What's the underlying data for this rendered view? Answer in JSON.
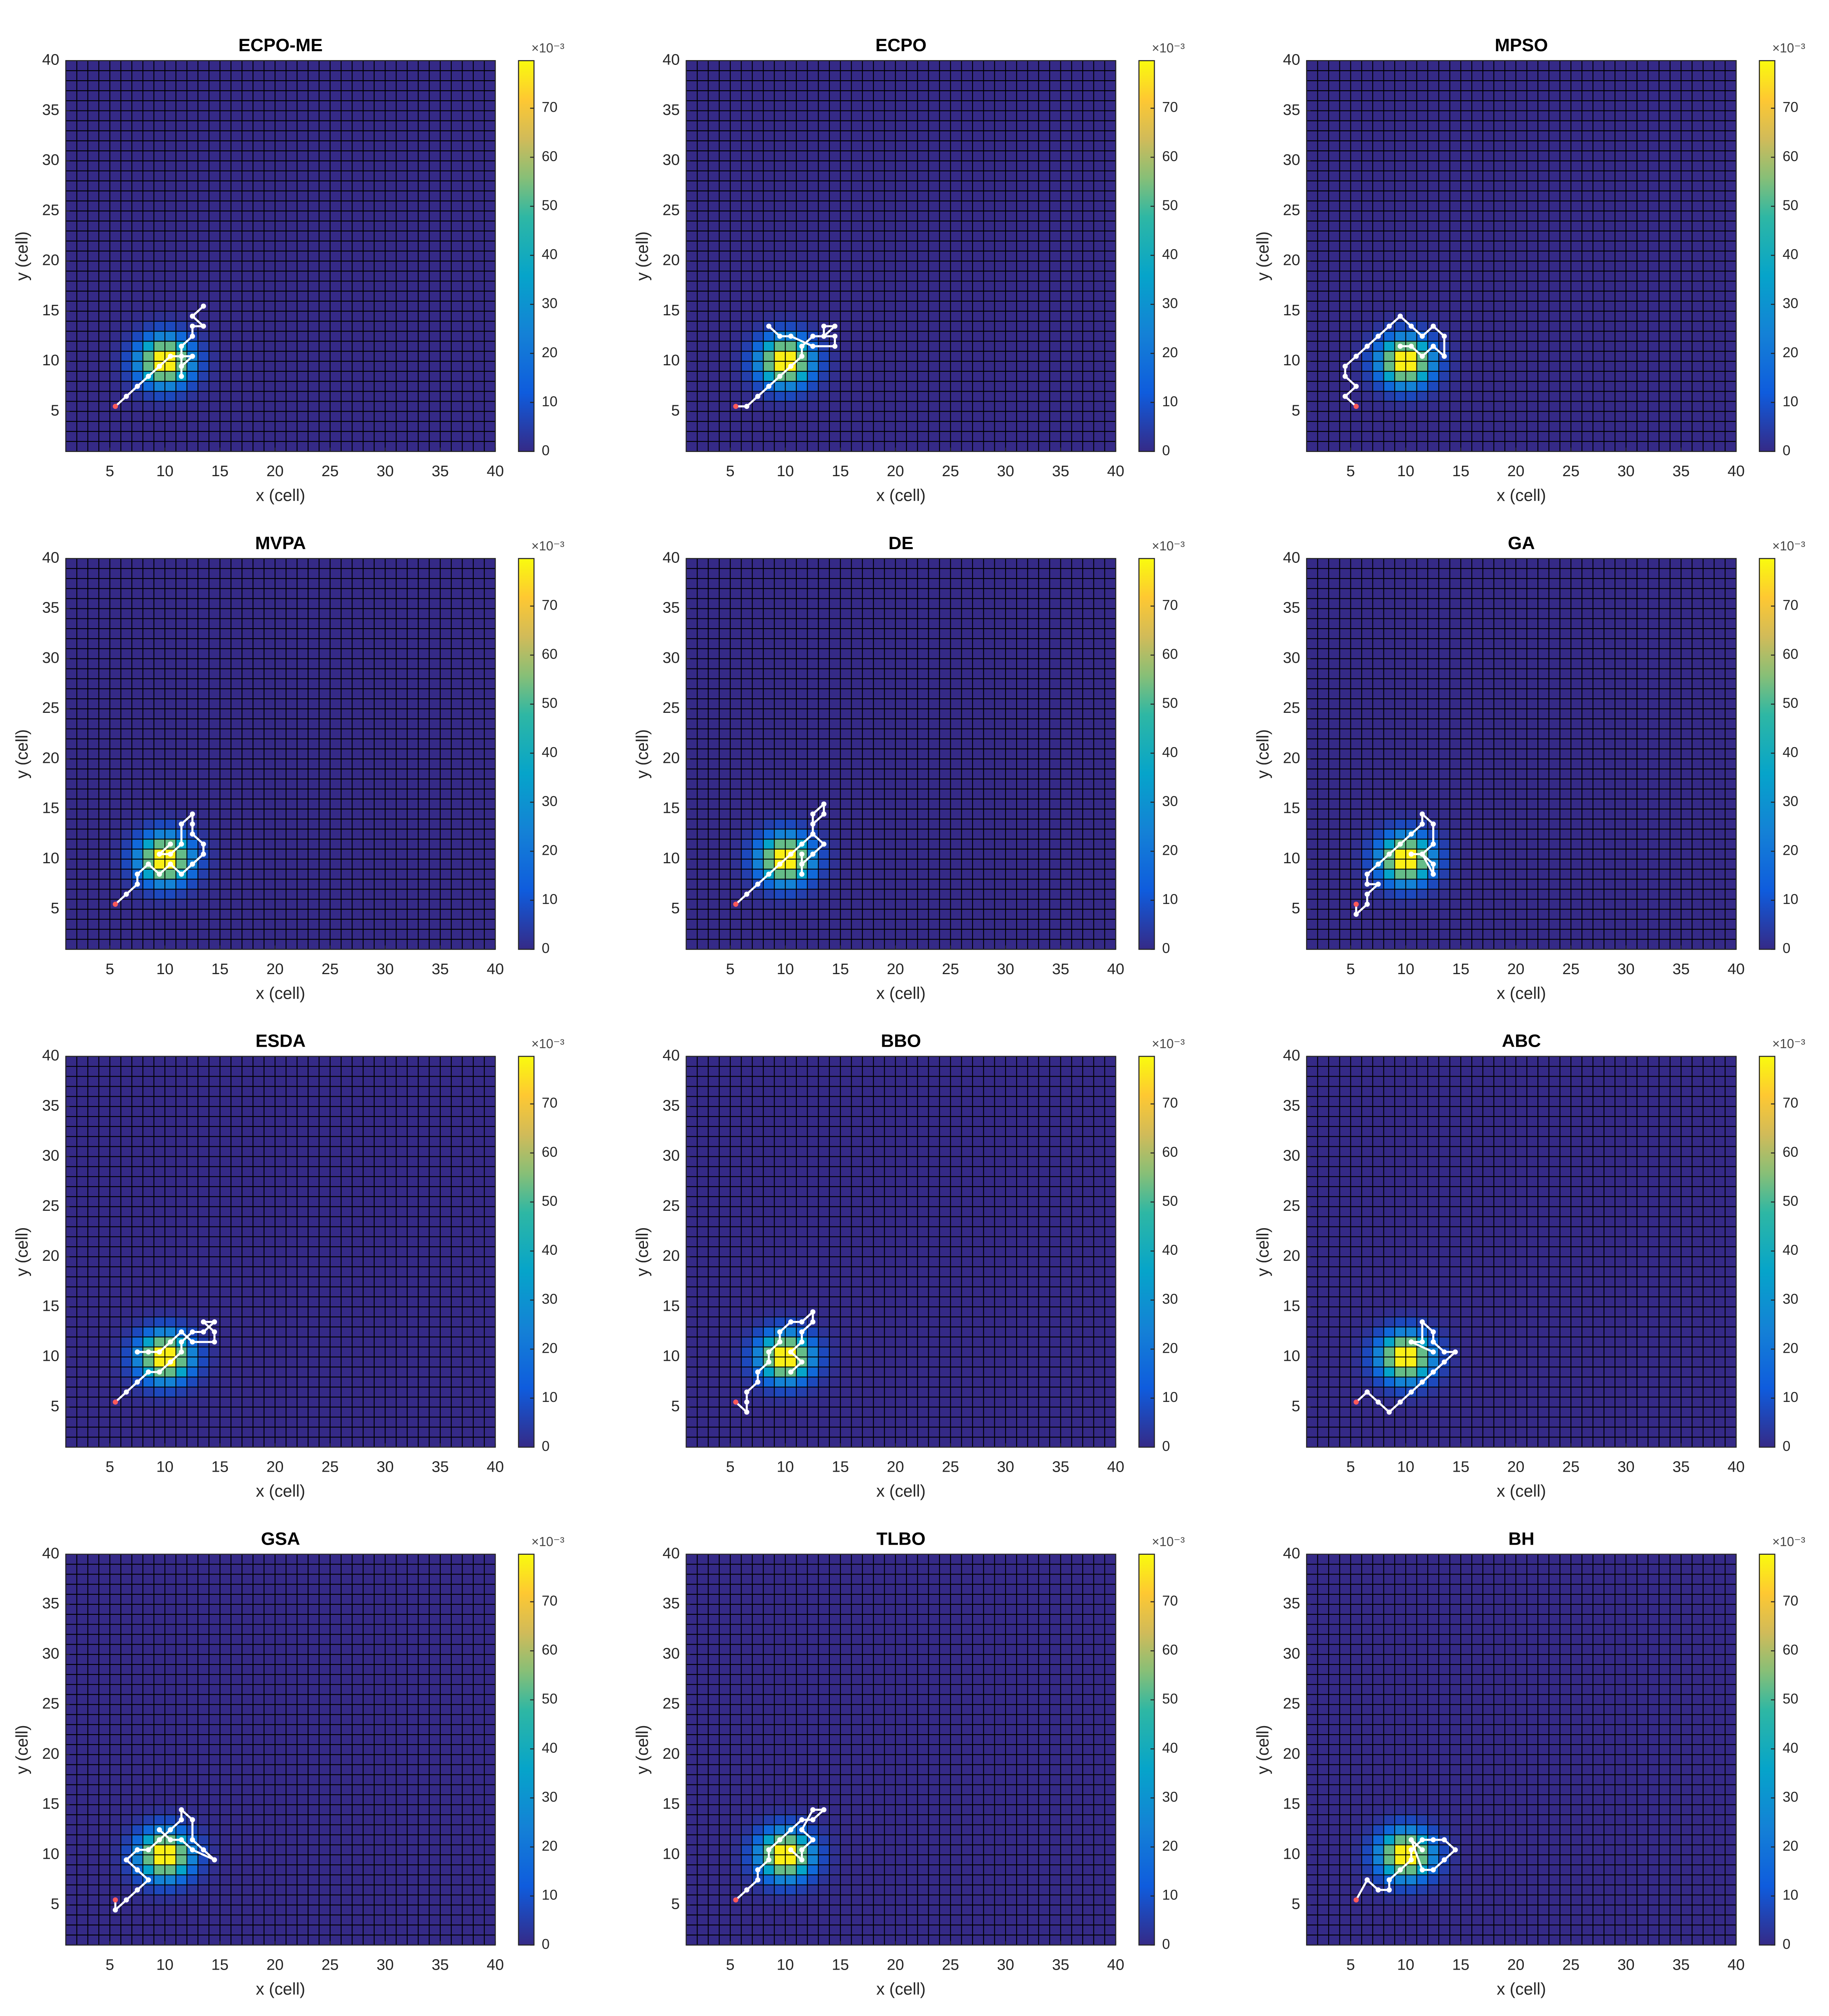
{
  "probability_map": {
    "x_edges": [
      5,
      6,
      7,
      8,
      9,
      10,
      11,
      12,
      13,
      14,
      15
    ],
    "y_edges": [
      5,
      6,
      7,
      8,
      9,
      10,
      11,
      12,
      13,
      14,
      15
    ],
    "z": [
      [
        0,
        0.2,
        0.5,
        1.1,
        1.6,
        1.6,
        1.1,
        0.5,
        0.2,
        0
      ],
      [
        0.2,
        0.7,
        2.3,
        5.1,
        7.5,
        7.5,
        5.1,
        2.3,
        0.7,
        0.2
      ],
      [
        0.5,
        2.3,
        7.5,
        16.3,
        24.2,
        24.2,
        16.3,
        7.5,
        2.3,
        0.5
      ],
      [
        1.1,
        5.1,
        16.3,
        35.7,
        52.7,
        52.7,
        35.7,
        16.3,
        5.1,
        1.1
      ],
      [
        1.6,
        7.5,
        24.2,
        52.7,
        77.9,
        77.9,
        52.7,
        24.2,
        7.5,
        1.6
      ],
      [
        1.6,
        7.5,
        24.2,
        52.7,
        77.9,
        77.9,
        52.7,
        24.2,
        7.5,
        1.6
      ],
      [
        1.1,
        5.1,
        16.3,
        35.7,
        52.7,
        52.7,
        35.7,
        16.3,
        5.1,
        1.1
      ],
      [
        0.5,
        2.3,
        7.5,
        16.3,
        24.2,
        24.2,
        16.3,
        7.5,
        2.3,
        0.5
      ],
      [
        0.2,
        0.7,
        2.3,
        5.1,
        7.5,
        7.5,
        5.1,
        2.3,
        0.7,
        0.2
      ],
      [
        0,
        0.2,
        0.5,
        1.1,
        1.6,
        1.6,
        1.1,
        0.5,
        0.2,
        0
      ]
    ],
    "colorbar": {
      "lim": [
        0,
        79.7
      ],
      "ticks": [
        0,
        10,
        20,
        30,
        40,
        50,
        60,
        70
      ],
      "exponent_label": "×10⁻³"
    }
  },
  "chart_data": [
    {
      "type": "heatmap",
      "title": "ECPO-ME",
      "xlabel": "x (cell)",
      "ylabel": "y (cell)",
      "xlim": [
        1,
        40
      ],
      "ylim": [
        1,
        40
      ],
      "xticks": [
        5,
        10,
        15,
        20,
        25,
        30,
        35,
        40
      ],
      "yticks": [
        5,
        10,
        15,
        20,
        25,
        30,
        35,
        40
      ],
      "path": {
        "color": "#ffffff",
        "start_color": "#ff5a5a",
        "x": [
          5.5,
          6.5,
          7.5,
          8.5,
          9.5,
          10.5,
          11.5,
          12.5,
          11.5,
          11.5,
          11.5,
          12.5,
          12.5,
          13.5,
          12.5,
          13.5
        ],
        "y": [
          5.5,
          6.5,
          7.5,
          8.5,
          9.5,
          10.5,
          10.5,
          10.5,
          9.5,
          8.5,
          11.5,
          12.5,
          13.5,
          13.5,
          14.5,
          15.5
        ]
      }
    },
    {
      "type": "heatmap",
      "title": "ECPO",
      "xlabel": "x (cell)",
      "ylabel": "y (cell)",
      "xlim": [
        1,
        40
      ],
      "ylim": [
        1,
        40
      ],
      "xticks": [
        5,
        10,
        15,
        20,
        25,
        30,
        35,
        40
      ],
      "yticks": [
        5,
        10,
        15,
        20,
        25,
        30,
        35,
        40
      ],
      "path": {
        "color": "#ffffff",
        "start_color": "#ff5a5a",
        "x": [
          5.5,
          6.5,
          7.5,
          8.5,
          9.5,
          10.5,
          11.5,
          11.5,
          12.5,
          13.5,
          14.5,
          13.5,
          13.5,
          14.5,
          14.5,
          12.5,
          10.5,
          9.5,
          8.5
        ],
        "y": [
          5.5,
          5.5,
          6.5,
          7.5,
          8.5,
          9.5,
          10.5,
          11.5,
          12.5,
          12.5,
          13.5,
          13.5,
          12.5,
          12.5,
          11.5,
          11.5,
          12.5,
          12.5,
          13.5
        ]
      }
    },
    {
      "type": "heatmap",
      "title": "MPSO",
      "xlabel": "x (cell)",
      "ylabel": "y (cell)",
      "xlim": [
        1,
        40
      ],
      "ylim": [
        1,
        40
      ],
      "xticks": [
        5,
        10,
        15,
        20,
        25,
        30,
        35,
        40
      ],
      "yticks": [
        5,
        10,
        15,
        20,
        25,
        30,
        35,
        40
      ],
      "path": {
        "color": "#ffffff",
        "start_color": "#ff5a5a",
        "x": [
          5.5,
          4.5,
          5.5,
          4.5,
          4.5,
          5.5,
          6.5,
          7.5,
          8.5,
          9.5,
          10.5,
          11.5,
          12.5,
          13.5,
          13.5,
          12.5,
          11.5,
          10.5,
          9.5
        ],
        "y": [
          5.5,
          6.5,
          7.5,
          8.5,
          9.5,
          10.5,
          11.5,
          12.5,
          13.5,
          14.5,
          13.5,
          12.5,
          13.5,
          12.5,
          10.5,
          11.5,
          10.5,
          11.5,
          11.5
        ]
      }
    },
    {
      "type": "heatmap",
      "title": "MVPA",
      "xlabel": "x (cell)",
      "ylabel": "y (cell)",
      "xlim": [
        1,
        40
      ],
      "ylim": [
        1,
        40
      ],
      "xticks": [
        5,
        10,
        15,
        20,
        25,
        30,
        35,
        40
      ],
      "yticks": [
        5,
        10,
        15,
        20,
        25,
        30,
        35,
        40
      ],
      "path": {
        "color": "#ffffff",
        "start_color": "#ff5a5a",
        "x": [
          5.5,
          6.5,
          7.5,
          7.5,
          8.5,
          9.5,
          10.5,
          11.5,
          12.5,
          13.5,
          13.5,
          12.5,
          12.5,
          12.5,
          11.5,
          11.5,
          10.5,
          9.5,
          10.5
        ],
        "y": [
          5.5,
          6.5,
          7.5,
          8.5,
          9.5,
          8.5,
          9.5,
          8.5,
          9.5,
          10.5,
          11.5,
          12.5,
          13.5,
          14.5,
          13.5,
          11.5,
          10.5,
          10.5,
          11.5
        ]
      }
    },
    {
      "type": "heatmap",
      "title": "DE",
      "xlabel": "x (cell)",
      "ylabel": "y (cell)",
      "xlim": [
        1,
        40
      ],
      "ylim": [
        1,
        40
      ],
      "xticks": [
        5,
        10,
        15,
        20,
        25,
        30,
        35,
        40
      ],
      "yticks": [
        5,
        10,
        15,
        20,
        25,
        30,
        35,
        40
      ],
      "path": {
        "color": "#ffffff",
        "start_color": "#ff5a5a",
        "x": [
          5.5,
          6.5,
          7.5,
          8.5,
          9.5,
          10.5,
          11.5,
          12.5,
          12.5,
          13.5,
          13.5,
          12.5,
          12.5,
          13.5,
          12.5,
          11.5,
          11.5,
          11.5
        ],
        "y": [
          5.5,
          6.5,
          7.5,
          8.5,
          9.5,
          10.5,
          11.5,
          12.5,
          13.5,
          14.5,
          15.5,
          14.5,
          12.5,
          11.5,
          10.5,
          9.5,
          8.5,
          10.5
        ]
      }
    },
    {
      "type": "heatmap",
      "title": "GA",
      "xlabel": "x (cell)",
      "ylabel": "y (cell)",
      "xlim": [
        1,
        40
      ],
      "ylim": [
        1,
        40
      ],
      "xticks": [
        5,
        10,
        15,
        20,
        25,
        30,
        35,
        40
      ],
      "yticks": [
        5,
        10,
        15,
        20,
        25,
        30,
        35,
        40
      ],
      "path": {
        "color": "#ffffff",
        "start_color": "#ff5a5a",
        "x": [
          5.5,
          5.5,
          6.5,
          6.5,
          7.5,
          6.5,
          6.5,
          7.5,
          8.5,
          9.5,
          10.5,
          11.5,
          11.5,
          12.5,
          12.5,
          11.5,
          12.5,
          12.5,
          11.5,
          10.5
        ],
        "y": [
          5.5,
          4.5,
          5.5,
          6.5,
          7.5,
          7.5,
          8.5,
          9.5,
          10.5,
          11.5,
          12.5,
          13.5,
          14.5,
          13.5,
          11.5,
          10.5,
          9.5,
          8.5,
          10.5,
          10.5
        ]
      }
    },
    {
      "type": "heatmap",
      "title": "ESDA",
      "xlabel": "x (cell)",
      "ylabel": "y (cell)",
      "xlim": [
        1,
        40
      ],
      "ylim": [
        1,
        40
      ],
      "xticks": [
        5,
        10,
        15,
        20,
        25,
        30,
        35,
        40
      ],
      "yticks": [
        5,
        10,
        15,
        20,
        25,
        30,
        35,
        40
      ],
      "path": {
        "color": "#ffffff",
        "start_color": "#ff5a5a",
        "x": [
          5.5,
          6.5,
          7.5,
          8.5,
          9.5,
          10.5,
          11.5,
          11.5,
          12.5,
          13.5,
          14.5,
          13.5,
          14.5,
          14.5,
          12.5,
          11.5,
          10.5,
          9.5,
          8.5,
          7.5
        ],
        "y": [
          5.5,
          6.5,
          7.5,
          8.5,
          8.5,
          9.5,
          10.5,
          11.5,
          12.5,
          12.5,
          13.5,
          13.5,
          12.5,
          11.5,
          11.5,
          12.5,
          11.5,
          10.5,
          10.5,
          10.5
        ]
      }
    },
    {
      "type": "heatmap",
      "title": "BBO",
      "xlabel": "x (cell)",
      "ylabel": "y (cell)",
      "xlim": [
        1,
        40
      ],
      "ylim": [
        1,
        40
      ],
      "xticks": [
        5,
        10,
        15,
        20,
        25,
        30,
        35,
        40
      ],
      "yticks": [
        5,
        10,
        15,
        20,
        25,
        30,
        35,
        40
      ],
      "path": {
        "color": "#ffffff",
        "start_color": "#ff5a5a",
        "x": [
          5.5,
          6.5,
          6.5,
          6.5,
          7.5,
          7.5,
          8.5,
          8.5,
          9.5,
          9.5,
          10.5,
          11.5,
          12.5,
          12.5,
          11.5,
          11.5,
          10.5,
          11.5,
          10.5
        ],
        "y": [
          5.5,
          4.5,
          5.5,
          6.5,
          7.5,
          8.5,
          9.5,
          10.5,
          11.5,
          12.5,
          13.5,
          13.5,
          14.5,
          13.5,
          12.5,
          11.5,
          10.5,
          9.5,
          8.5
        ]
      }
    },
    {
      "type": "heatmap",
      "title": "ABC",
      "xlabel": "x (cell)",
      "ylabel": "y (cell)",
      "xlim": [
        1,
        40
      ],
      "ylim": [
        1,
        40
      ],
      "xticks": [
        5,
        10,
        15,
        20,
        25,
        30,
        35,
        40
      ],
      "yticks": [
        5,
        10,
        15,
        20,
        25,
        30,
        35,
        40
      ],
      "path": {
        "color": "#ffffff",
        "start_color": "#ff5a5a",
        "x": [
          5.5,
          6.5,
          7.5,
          8.5,
          9.5,
          10.5,
          11.5,
          12.5,
          13.5,
          14.5,
          13.5,
          12.5,
          12.5,
          11.5,
          11.5,
          10.5,
          12.5
        ],
        "y": [
          5.5,
          6.5,
          5.5,
          4.5,
          5.5,
          6.5,
          7.5,
          8.5,
          9.5,
          10.5,
          10.5,
          11.5,
          12.5,
          13.5,
          11.5,
          11.5,
          10.5
        ]
      }
    },
    {
      "type": "heatmap",
      "title": "GSA",
      "xlabel": "x (cell)",
      "ylabel": "y (cell)",
      "xlim": [
        1,
        40
      ],
      "ylim": [
        1,
        40
      ],
      "xticks": [
        5,
        10,
        15,
        20,
        25,
        30,
        35,
        40
      ],
      "yticks": [
        5,
        10,
        15,
        20,
        25,
        30,
        35,
        40
      ],
      "path": {
        "color": "#ffffff",
        "start_color": "#ff5a5a",
        "x": [
          5.5,
          5.5,
          6.5,
          7.5,
          8.5,
          7.5,
          6.5,
          7.5,
          8.5,
          9.5,
          10.5,
          11.5,
          11.5,
          12.5,
          12.5,
          13.5,
          14.5,
          12.5,
          11.5,
          10.5,
          9.5
        ],
        "y": [
          5.5,
          4.5,
          5.5,
          6.5,
          7.5,
          8.5,
          9.5,
          10.5,
          10.5,
          11.5,
          12.5,
          13.5,
          14.5,
          13.5,
          11.5,
          10.5,
          9.5,
          10.5,
          11.5,
          11.5,
          12.5
        ]
      }
    },
    {
      "type": "heatmap",
      "title": "TLBO",
      "xlabel": "x (cell)",
      "ylabel": "y (cell)",
      "xlim": [
        1,
        40
      ],
      "ylim": [
        1,
        40
      ],
      "xticks": [
        5,
        10,
        15,
        20,
        25,
        30,
        35,
        40
      ],
      "yticks": [
        5,
        10,
        15,
        20,
        25,
        30,
        35,
        40
      ],
      "path": {
        "color": "#ffffff",
        "start_color": "#ff5a5a",
        "x": [
          5.5,
          6.5,
          7.5,
          7.5,
          8.5,
          8.5,
          9.5,
          10.5,
          11.5,
          12.5,
          13.5,
          12.5,
          11.5,
          12.5,
          11.5,
          11.5,
          10.5
        ],
        "y": [
          5.5,
          6.5,
          7.5,
          8.5,
          9.5,
          10.5,
          11.5,
          12.5,
          13.5,
          13.5,
          14.5,
          14.5,
          12.5,
          11.5,
          10.5,
          9.5,
          10.5
        ]
      }
    },
    {
      "type": "heatmap",
      "title": "BH",
      "xlabel": "x (cell)",
      "ylabel": "y (cell)",
      "xlim": [
        1,
        40
      ],
      "ylim": [
        1,
        40
      ],
      "xticks": [
        5,
        10,
        15,
        20,
        25,
        30,
        35,
        40
      ],
      "yticks": [
        5,
        10,
        15,
        20,
        25,
        30,
        35,
        40
      ],
      "path": {
        "color": "#ffffff",
        "start_color": "#ff5a5a",
        "x": [
          5.5,
          6.5,
          7.5,
          8.5,
          8.5,
          9.5,
          10.5,
          10.5,
          11.5,
          12.5,
          13.5,
          14.5,
          13.5,
          12.5,
          11.5,
          10.5,
          11.5
        ],
        "y": [
          5.5,
          7.5,
          6.5,
          6.5,
          7.5,
          8.5,
          9.5,
          10.5,
          11.5,
          11.5,
          11.5,
          10.5,
          9.5,
          8.5,
          8.5,
          11.5,
          10.5
        ]
      }
    }
  ]
}
